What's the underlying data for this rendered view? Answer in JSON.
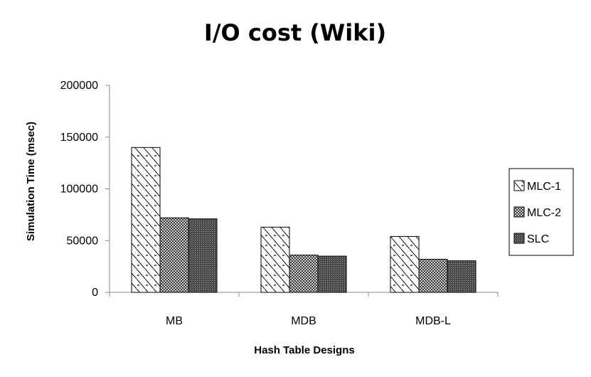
{
  "chart_data": {
    "type": "bar",
    "title": "I/O cost (Wiki)",
    "xlabel": "Hash Table Designs",
    "ylabel": "Simulation Time (msec)",
    "categories": [
      "MB",
      "MDB",
      "MDB-L"
    ],
    "series": [
      {
        "name": "MLC-1",
        "values": [
          140000,
          63000,
          54000
        ]
      },
      {
        "name": "MLC-2",
        "values": [
          72000,
          36000,
          32000
        ]
      },
      {
        "name": "SLC",
        "values": [
          71000,
          35000,
          30500
        ]
      }
    ],
    "ylim": [
      0,
      200000
    ],
    "yticks": [
      "0",
      "50000",
      "100000",
      "150000",
      "200000"
    ],
    "grid": false,
    "legend_position": "right"
  }
}
